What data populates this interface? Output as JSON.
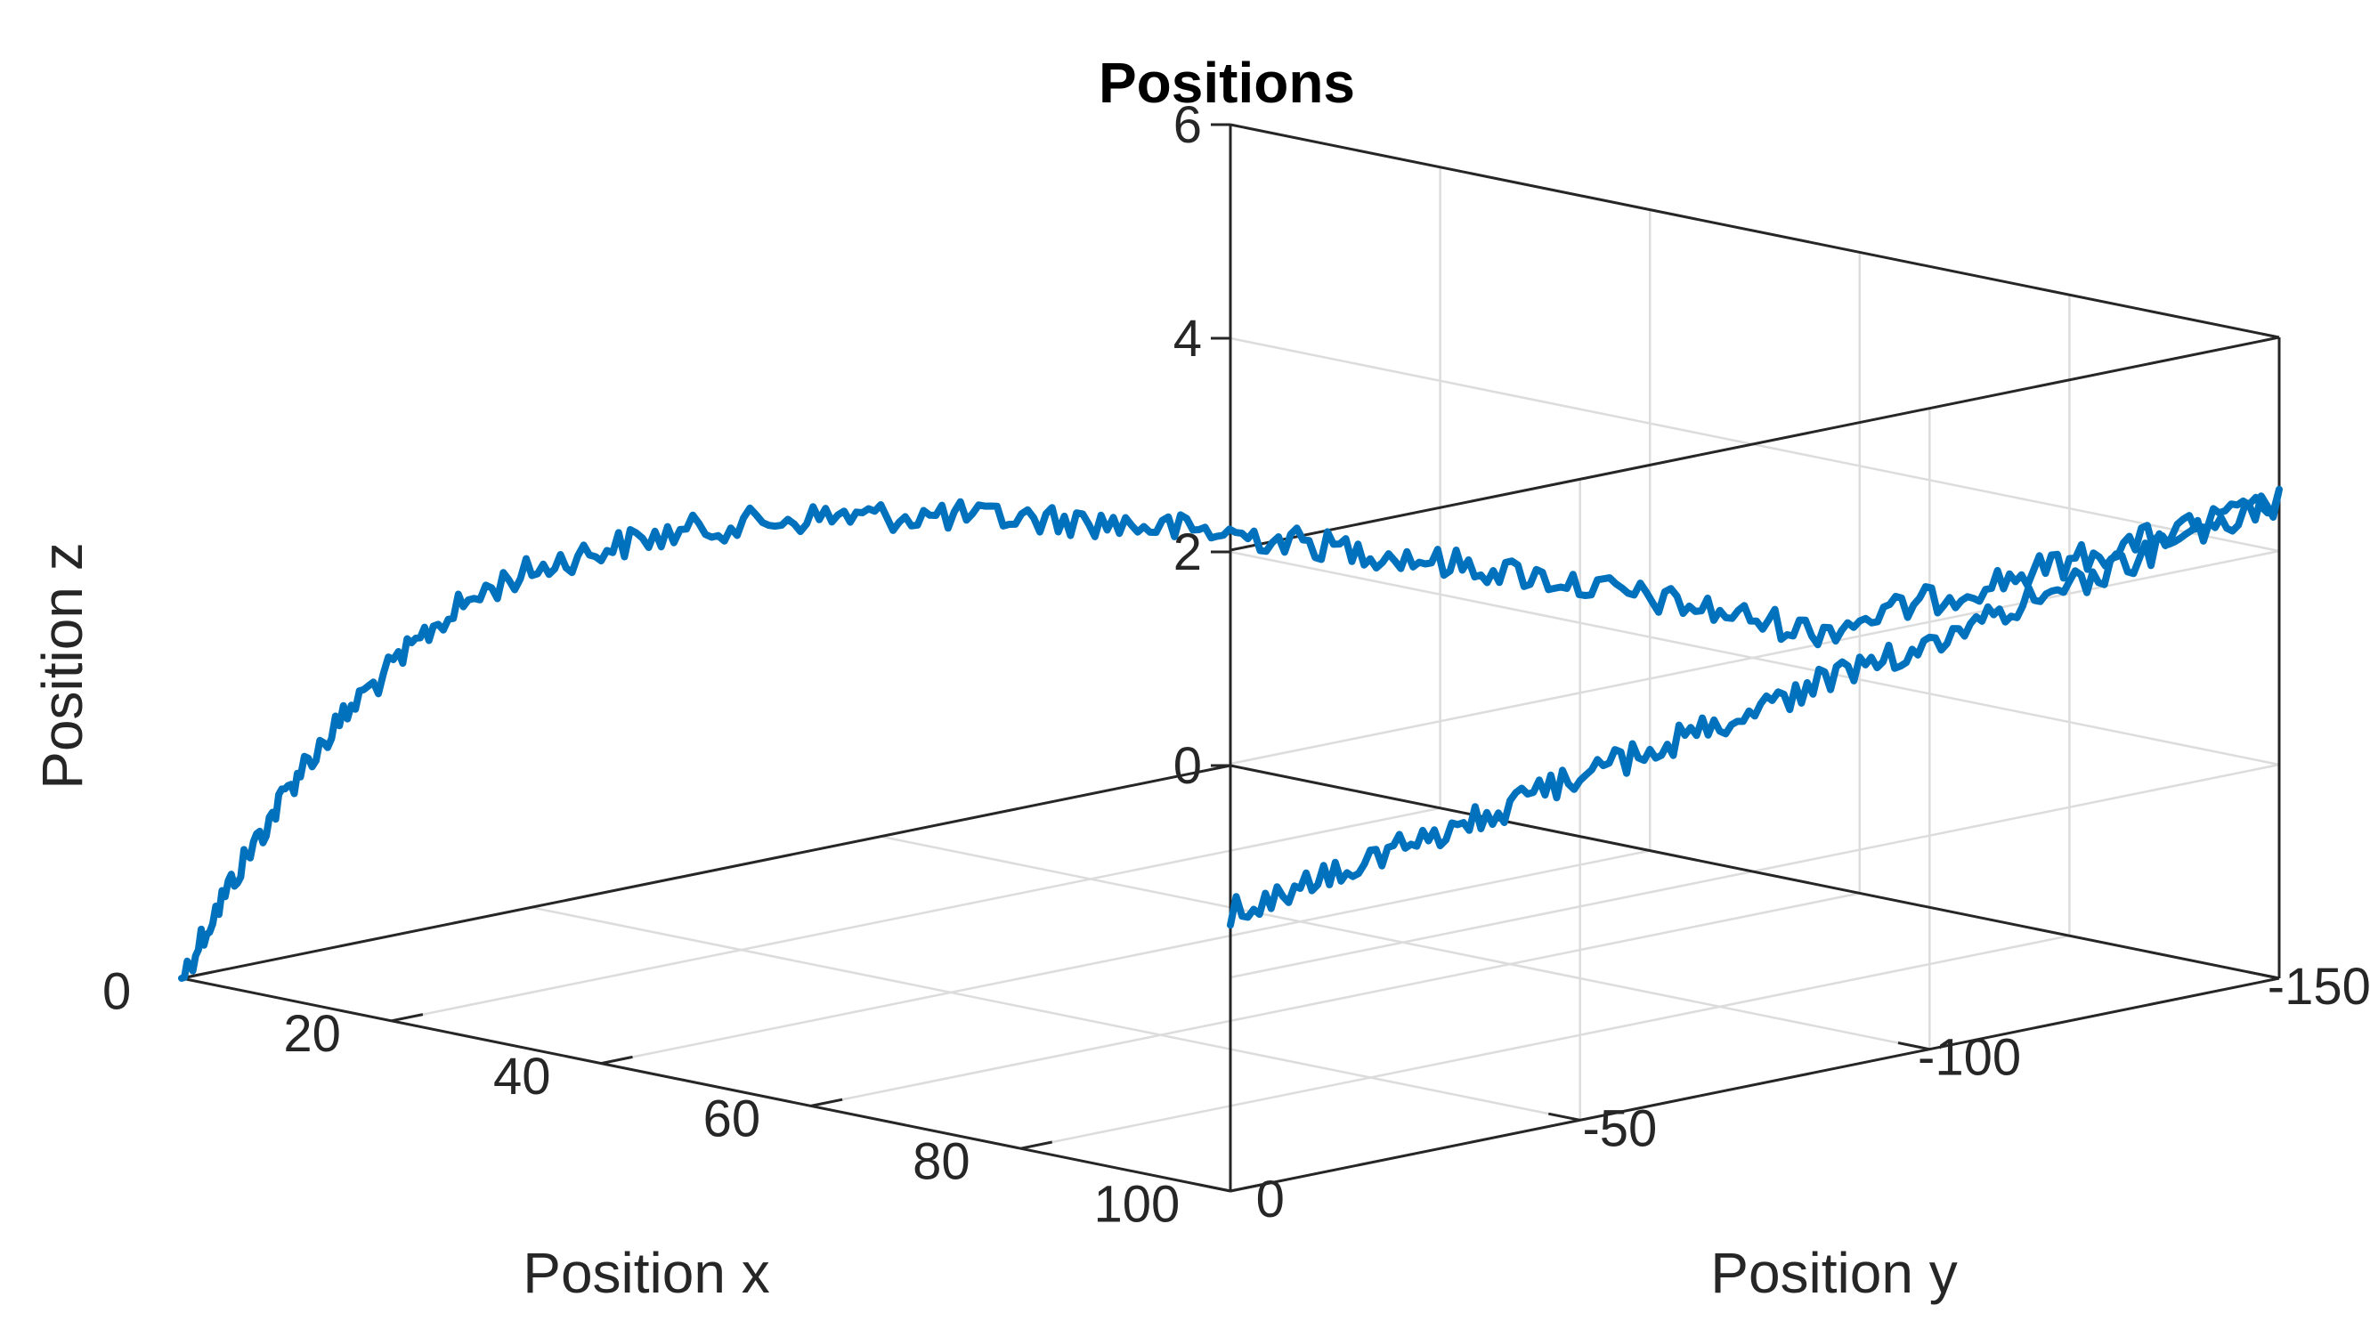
{
  "chart_data": {
    "type": "line",
    "title": "Positions",
    "xlabel": "Position x",
    "ylabel": "Position y",
    "zlabel": "Position z",
    "xlim": [
      0,
      100
    ],
    "ylim": [
      -150,
      0
    ],
    "zlim": [
      0,
      6
    ],
    "x_ticks": [
      "0",
      "20",
      "40",
      "60",
      "80",
      "100"
    ],
    "y_ticks": [
      "-150",
      "-100",
      "-50",
      "0"
    ],
    "z_ticks": [
      "0",
      "2",
      "4",
      "6"
    ],
    "grid": true,
    "color": "#0072BD",
    "series": [
      {
        "points": [
          [
            0,
            0,
            0.0
          ],
          [
            2,
            -1,
            0.55
          ],
          [
            4,
            -2,
            1.05
          ],
          [
            6,
            -4,
            1.6
          ],
          [
            8,
            -5,
            2.05
          ],
          [
            10,
            -7,
            2.45
          ],
          [
            12,
            -8,
            2.8
          ],
          [
            14,
            -10,
            3.1
          ],
          [
            16,
            -12,
            3.45
          ],
          [
            18,
            -14,
            3.7
          ],
          [
            20,
            -16,
            3.9
          ],
          [
            24,
            -19,
            4.15
          ],
          [
            28,
            -23,
            4.35
          ],
          [
            32,
            -26,
            4.5
          ],
          [
            36,
            -30,
            4.6
          ],
          [
            40,
            -33,
            4.68
          ],
          [
            46,
            -38,
            4.74
          ],
          [
            52,
            -43,
            4.77
          ],
          [
            58,
            -48,
            4.77
          ],
          [
            64,
            -53,
            4.74
          ],
          [
            70,
            -58,
            4.68
          ],
          [
            76,
            -63,
            4.6
          ],
          [
            82,
            -69,
            4.5
          ],
          [
            88,
            -74,
            4.38
          ],
          [
            94,
            -79,
            4.25
          ],
          [
            100,
            -84,
            4.12
          ]
        ]
      },
      {
        "points": [
          [
            100,
            -150,
            4.45
          ],
          [
            100,
            -130,
            4.2
          ],
          [
            100,
            -110,
            3.95
          ],
          [
            100,
            -90,
            3.7
          ],
          [
            100,
            -70,
            3.45
          ],
          [
            100,
            -50,
            3.2
          ],
          [
            100,
            -30,
            2.95
          ],
          [
            100,
            -10,
            2.72
          ],
          [
            100,
            0,
            2.6
          ]
        ]
      }
    ]
  }
}
